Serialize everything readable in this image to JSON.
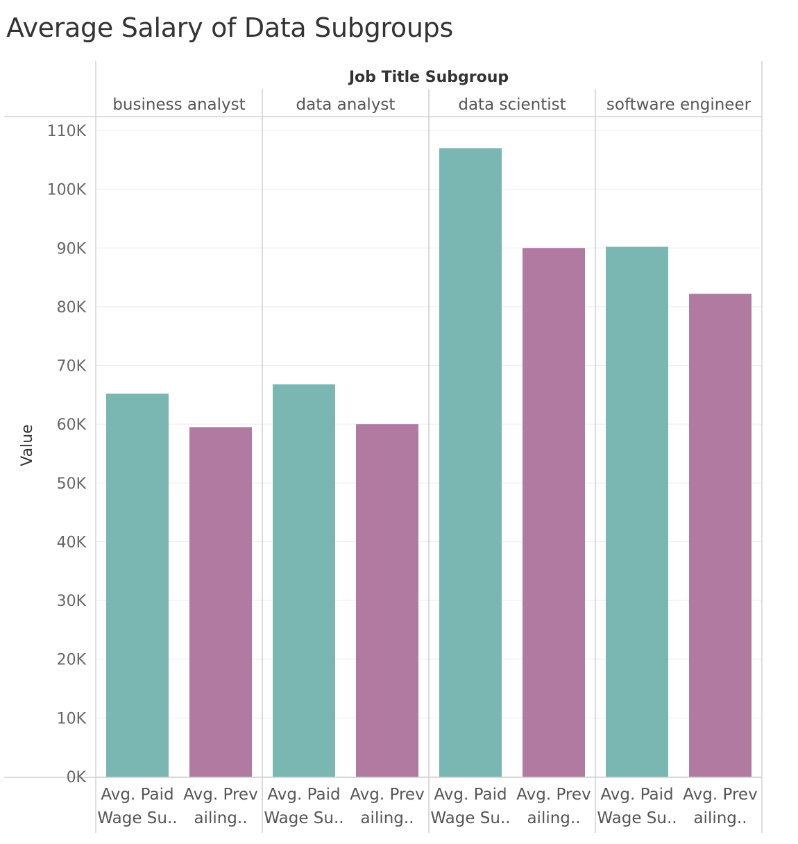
{
  "title": "Average Salary of Data Subgroups",
  "chart_data": {
    "type": "bar",
    "title": "Average Salary of Data Subgroups",
    "column_header": "Job Title Subgroup",
    "ylabel": "Value",
    "ylim": [
      0,
      110000
    ],
    "y_ticks": [
      0,
      10000,
      20000,
      30000,
      40000,
      50000,
      60000,
      70000,
      80000,
      90000,
      100000,
      110000
    ],
    "y_tick_labels": [
      "0K",
      "10K",
      "20K",
      "30K",
      "40K",
      "50K",
      "60K",
      "70K",
      "80K",
      "90K",
      "100K",
      "110K"
    ],
    "grid": true,
    "categories": [
      "business analyst",
      "data analyst",
      "data scientist",
      "software engineer"
    ],
    "measure_labels": [
      [
        "Avg. Paid",
        "Wage Su.."
      ],
      [
        "Avg. Prev",
        "ailing.."
      ]
    ],
    "colors": [
      "#7ab6b2",
      "#b07aa1"
    ],
    "series": [
      {
        "values": [
          65200,
          66800,
          107000,
          90200
        ]
      },
      {
        "values": [
          59500,
          60000,
          90000,
          82200
        ]
      }
    ]
  }
}
